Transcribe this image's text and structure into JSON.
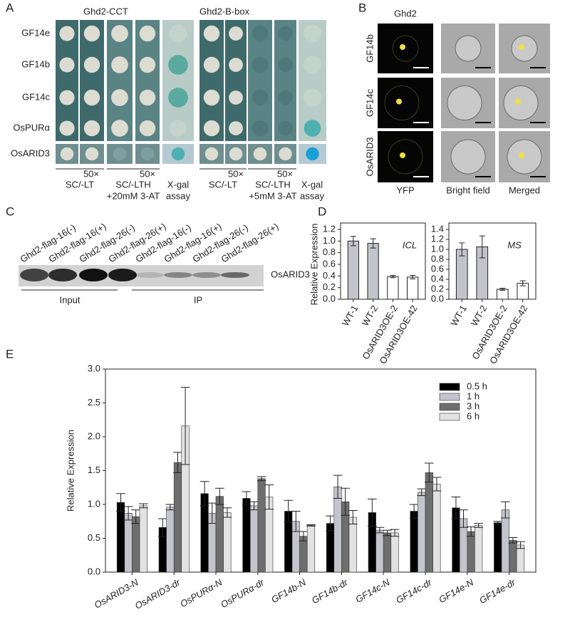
{
  "panel_a": {
    "letter": "A",
    "groups": [
      "Ghd2-CCT",
      "Ghd2-B-box"
    ],
    "rows": [
      "GF14e",
      "GF14b",
      "GF14c",
      "OsPURα",
      "OsARID3"
    ],
    "dilution": [
      "50×",
      "50×",
      "50×",
      "50×"
    ],
    "conditions": [
      [
        "SC/-LT"
      ],
      [
        "SC/-LTH",
        "+20mM 3-AT"
      ],
      [
        "X-gal",
        "assay"
      ],
      [
        "SC/-LT"
      ],
      [
        "SC/-LTH",
        "+5mM 3-AT"
      ],
      [
        "X-gal",
        "assay"
      ]
    ]
  },
  "panel_b": {
    "letter": "B",
    "title": "Ghd2",
    "rows": [
      "GF14b",
      "GF14c",
      "OsARID3"
    ],
    "columns": [
      "YFP",
      "Bright field",
      "Merged"
    ]
  },
  "panel_c": {
    "letter": "C",
    "lanes": [
      "Ghd2-flag-16(-)",
      "Ghd2-flag-16(+)",
      "Ghd2-flag-26(-)",
      "Ghd2-flag-26(+)",
      "Ghd2-flag-16(-)",
      "Ghd2-flag-16(+)",
      "Ghd2-flag-26(-)",
      "Ghd2-flag-26(+)"
    ],
    "band": "OsARID3",
    "groups": [
      "Input",
      "IP"
    ]
  },
  "panel_d": {
    "letter": "D"
  },
  "panel_e": {
    "letter": "E"
  },
  "chart_data": [
    {
      "type": "bar",
      "ylabel": "Relative Expression",
      "annotation": "ICL",
      "categories": [
        "WT-1",
        "WT-2",
        "OsARID3OE-2",
        "OsARID3OE-42"
      ],
      "values": [
        1.0,
        0.96,
        0.39,
        0.38
      ],
      "errors": [
        0.08,
        0.08,
        0.02,
        0.03
      ],
      "colors": [
        "#c3c3cb",
        "#c3c3cb",
        "#ffffff",
        "#ffffff"
      ],
      "ylim": [
        0,
        1.2
      ],
      "yticks": [
        {
          "value": 0,
          "label": "0.0"
        },
        0.2,
        0.4,
        0.6,
        0.8,
        {
          "value": 1,
          "label": "1.0"
        },
        1.2
      ]
    },
    {
      "type": "bar",
      "annotation": "MS",
      "categories": [
        "WT-1",
        "WT-2",
        "OsARID3OE-2",
        "OsARID3OE-42"
      ],
      "values": [
        1.0,
        1.05,
        0.2,
        0.32
      ],
      "errors": [
        0.13,
        0.22,
        0.02,
        0.05
      ],
      "colors": [
        "#c3c3cb",
        "#c3c3cb",
        "#ffffff",
        "#ffffff"
      ],
      "ylim": [
        0,
        1.4
      ],
      "yticks": [
        {
          "value": 0,
          "label": "0.0"
        },
        0.2,
        0.4,
        0.6,
        0.8,
        {
          "value": 1,
          "label": "1.0"
        },
        1.2,
        1.4
      ]
    },
    {
      "type": "bar",
      "ylabel": "Relative Expression",
      "legend": "upper right",
      "categories": [
        "OsARID3-N",
        "OsARID3-dr",
        "OsPURα-N",
        "OsPURα-dr",
        "GF14b-N",
        "GF14b-dr",
        "GF14c-N",
        "GF14c-dr",
        "GF14e-N",
        "GF14e-dr"
      ],
      "series": [
        {
          "name": "0.5 h",
          "color": "#000000",
          "values": [
            1.03,
            0.66,
            1.16,
            1.09,
            0.9,
            0.72,
            0.88,
            0.9,
            0.95,
            0.73
          ],
          "errors": [
            0.13,
            0.13,
            0.18,
            0.1,
            0.16,
            0.11,
            0.2,
            0.1,
            0.16,
            0.02
          ]
        },
        {
          "name": "1 h",
          "color": "#c4c4cc",
          "values": [
            0.87,
            0.96,
            0.87,
            0.98,
            0.75,
            1.26,
            0.62,
            1.18,
            0.79,
            0.92
          ],
          "errors": [
            0.1,
            0.04,
            0.15,
            0.06,
            0.15,
            0.17,
            0.04,
            0.05,
            0.13,
            0.12
          ]
        },
        {
          "name": "3 h",
          "color": "#6e6e6e",
          "values": [
            0.82,
            1.62,
            1.12,
            1.38,
            0.53,
            1.04,
            0.58,
            1.47,
            0.6,
            0.47
          ],
          "errors": [
            0.1,
            0.15,
            0.12,
            0.03,
            0.07,
            0.2,
            0.04,
            0.14,
            0.07,
            0.04
          ]
        },
        {
          "name": "6 h",
          "color": "#e2e2e2",
          "values": [
            0.98,
            2.16,
            0.88,
            1.11,
            0.69,
            0.81,
            0.58,
            1.3,
            0.69,
            0.4
          ],
          "errors": [
            0.03,
            0.57,
            0.07,
            0.18,
            0.01,
            0.1,
            0.05,
            0.1,
            0.03,
            0.05
          ]
        }
      ],
      "ylim": [
        0,
        3
      ],
      "yticks": [
        {
          "value": 0,
          "label": "0.0"
        },
        0.5,
        {
          "value": 1,
          "label": "1.0"
        },
        1.5,
        {
          "value": 2,
          "label": "2.0"
        },
        2.5,
        {
          "value": 3,
          "label": "3.0"
        }
      ]
    }
  ]
}
